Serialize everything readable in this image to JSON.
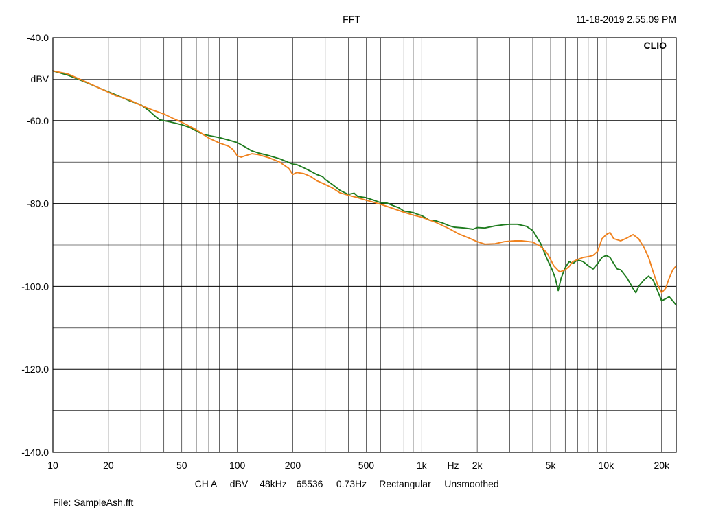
{
  "header": {
    "title": "FFT",
    "timestamp": "11-18-2019 2.55.09 PM",
    "brand": "CLIO"
  },
  "footer": {
    "settings": [
      "CH A",
      "dBV",
      "48kHz",
      "65536",
      "0.73Hz",
      "Rectangular",
      "Unsmoothed"
    ],
    "file": "File: SampleAsh.fft"
  },
  "colors": {
    "green": "#1e7b1e",
    "orange": "#f0821e",
    "grid": "#000000"
  },
  "chart_data": {
    "type": "line",
    "title": "FFT",
    "xlabel": "Hz",
    "ylabel": "dBV",
    "x_scale": "log",
    "xlim": [
      10,
      24000
    ],
    "ylim": [
      -140,
      -40
    ],
    "grid": true,
    "x_ticks": [
      {
        "value": 10,
        "label": "10"
      },
      {
        "value": 20,
        "label": "20"
      },
      {
        "value": 50,
        "label": "50"
      },
      {
        "value": 100,
        "label": "100"
      },
      {
        "value": 200,
        "label": "200"
      },
      {
        "value": 500,
        "label": "500"
      },
      {
        "value": 1000,
        "label": "1k"
      },
      {
        "value": 2000,
        "label": "2k"
      },
      {
        "value": 5000,
        "label": "5k"
      },
      {
        "value": 10000,
        "label": "10k"
      },
      {
        "value": 20000,
        "label": "20k"
      }
    ],
    "y_ticks": [
      {
        "value": -40,
        "label": "-40.0"
      },
      {
        "value": -60,
        "label": "-60.0"
      },
      {
        "value": -80,
        "label": "-80.0"
      },
      {
        "value": -100,
        "label": "-100.0"
      },
      {
        "value": -120,
        "label": "-120.0"
      },
      {
        "value": -140,
        "label": "-140.0"
      }
    ],
    "series": [
      {
        "color": "#1e7b1e",
        "x": [
          10,
          12,
          15,
          18,
          22,
          26,
          30,
          33,
          36,
          38,
          40,
          43,
          47,
          50,
          55,
          60,
          65,
          70,
          80,
          90,
          100,
          110,
          120,
          130,
          150,
          170,
          190,
          200,
          210,
          230,
          250,
          270,
          290,
          300,
          330,
          360,
          400,
          430,
          450,
          500,
          550,
          600,
          650,
          700,
          750,
          800,
          850,
          900,
          950,
          1000,
          1100,
          1200,
          1300,
          1400,
          1500,
          1700,
          1900,
          2000,
          2200,
          2500,
          2800,
          3000,
          3300,
          3700,
          4000,
          4400,
          4800,
          5100,
          5300,
          5500,
          5700,
          6000,
          6300,
          6600,
          7000,
          7500,
          8000,
          8500,
          9000,
          9500,
          10000,
          10500,
          11000,
          11500,
          12000,
          13000,
          14000,
          14500,
          15000,
          16000,
          17000,
          18000,
          19000,
          20000,
          21000,
          22000,
          23000,
          24000
        ],
        "y": [
          -48.0,
          -49.0,
          -50.7,
          -52.2,
          -53.8,
          -55.2,
          -56.2,
          -57.5,
          -59.0,
          -59.8,
          -60.0,
          -60.3,
          -60.7,
          -61.0,
          -61.6,
          -62.5,
          -63.3,
          -63.6,
          -64.1,
          -64.7,
          -65.3,
          -66.3,
          -67.3,
          -67.8,
          -68.5,
          -69.2,
          -70.1,
          -70.5,
          -70.6,
          -71.4,
          -72.2,
          -73.0,
          -73.5,
          -74.2,
          -75.5,
          -76.8,
          -77.8,
          -77.5,
          -78.3,
          -78.6,
          -79.2,
          -79.8,
          -79.9,
          -80.5,
          -81.0,
          -81.8,
          -82.0,
          -82.2,
          -82.6,
          -82.9,
          -84.0,
          -84.2,
          -84.7,
          -85.3,
          -85.7,
          -85.9,
          -86.2,
          -85.8,
          -85.9,
          -85.4,
          -85.1,
          -85.0,
          -85.0,
          -85.5,
          -86.5,
          -89.5,
          -93.5,
          -96.0,
          -98.0,
          -101.0,
          -98.0,
          -95.5,
          -94.0,
          -94.5,
          -93.6,
          -94.0,
          -95.0,
          -95.8,
          -94.5,
          -93.0,
          -92.5,
          -93.0,
          -94.5,
          -95.8,
          -96.0,
          -98.0,
          -100.5,
          -101.5,
          -100.0,
          -98.5,
          -97.5,
          -98.5,
          -101.0,
          -103.5,
          -103.0,
          -102.5,
          -103.5,
          -104.5
        ]
      },
      {
        "color": "#f0821e",
        "x": [
          10,
          12,
          15,
          18,
          22,
          26,
          30,
          35,
          40,
          45,
          50,
          55,
          60,
          65,
          70,
          80,
          90,
          95,
          100,
          105,
          110,
          120,
          130,
          150,
          170,
          180,
          190,
          200,
          210,
          230,
          250,
          270,
          300,
          330,
          360,
          400,
          450,
          500,
          550,
          600,
          700,
          800,
          900,
          1000,
          1200,
          1400,
          1600,
          1800,
          2000,
          2200,
          2500,
          2800,
          3200,
          3500,
          4000,
          4400,
          4800,
          5200,
          5600,
          6000,
          6300,
          6600,
          7000,
          7500,
          8000,
          8500,
          9000,
          9500,
          10000,
          10500,
          11000,
          12000,
          13000,
          14000,
          15000,
          16000,
          17000,
          18000,
          19000,
          20000,
          21000,
          22000,
          23000,
          24000
        ],
        "y": [
          -48.0,
          -48.7,
          -50.6,
          -52.2,
          -54.0,
          -55.0,
          -56.3,
          -57.5,
          -58.4,
          -59.5,
          -60.4,
          -61.3,
          -62.2,
          -63.3,
          -64.2,
          -65.4,
          -66.2,
          -67.0,
          -68.5,
          -68.8,
          -68.5,
          -68.0,
          -68.2,
          -69.0,
          -70.0,
          -70.8,
          -71.5,
          -73.0,
          -72.5,
          -72.8,
          -73.5,
          -74.5,
          -75.4,
          -76.3,
          -77.4,
          -78.0,
          -78.6,
          -79.2,
          -79.7,
          -80.2,
          -81.2,
          -82.1,
          -82.8,
          -83.3,
          -84.6,
          -86.0,
          -87.4,
          -88.3,
          -89.2,
          -89.8,
          -89.7,
          -89.2,
          -89.0,
          -89.0,
          -89.3,
          -90.3,
          -92.0,
          -95.0,
          -96.5,
          -96.0,
          -95.2,
          -94.0,
          -93.5,
          -93.0,
          -92.8,
          -92.5,
          -91.5,
          -88.5,
          -87.5,
          -87.0,
          -88.5,
          -89.0,
          -88.3,
          -87.5,
          -88.5,
          -90.5,
          -93.0,
          -96.5,
          -99.5,
          -101.5,
          -100.5,
          -98.0,
          -96.0,
          -95.0
        ]
      }
    ]
  }
}
